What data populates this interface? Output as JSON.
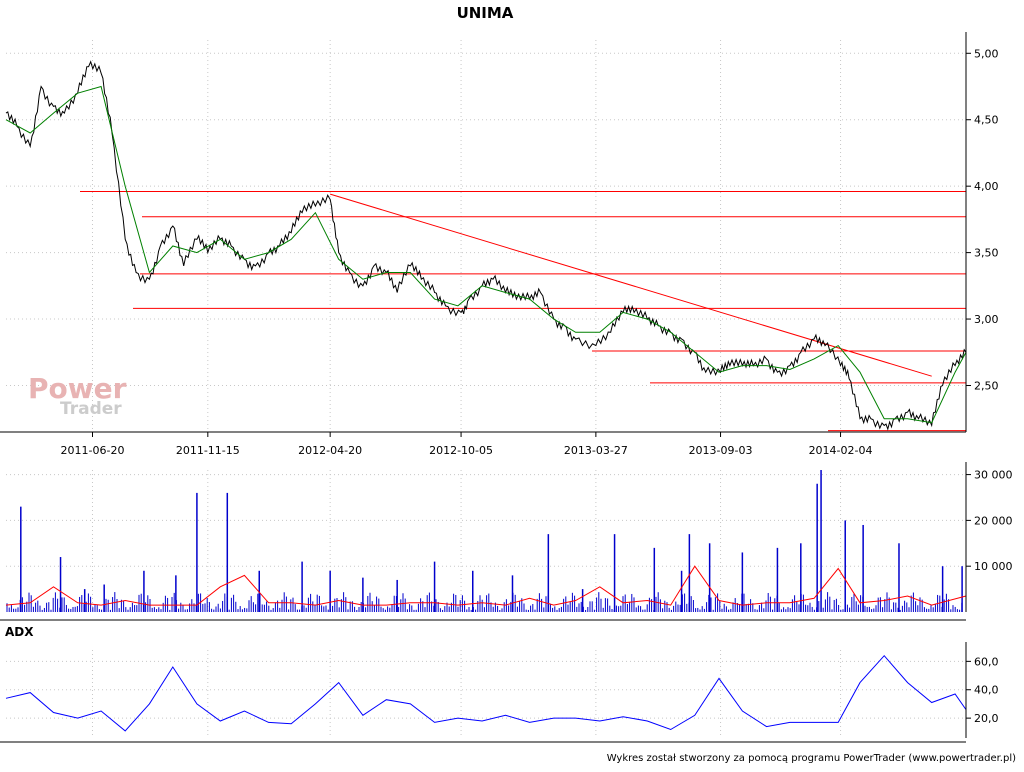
{
  "title": "UNIMA",
  "footer": "Wykres został stworzony za pomocą programu PowerTrader (www.powertrader.pl)",
  "watermark": {
    "line1": "Power",
    "line2": "Trader"
  },
  "colors": {
    "background": "#ffffff",
    "axis": "#000000",
    "grid": "#c8c8c8",
    "price_line": "#000000",
    "moving_average": "#008000",
    "trend_lines": "#ff0000",
    "volume_bars": "#0000cc",
    "volume_average": "#ff0000",
    "adx_line": "#0000ff",
    "watermark": "#e8b3b3"
  },
  "chart_data": [
    {
      "type": "line",
      "name": "price",
      "title": "UNIMA",
      "x_tick_labels": [
        "2011-06-20",
        "2011-11-15",
        "2012-04-20",
        "2012-10-05",
        "2013-03-27",
        "2013-09-03",
        "2014-02-04"
      ],
      "y_tick_labels": [
        "5,00",
        "4,50",
        "4,00",
        "3,50",
        "3,00",
        "2,50"
      ],
      "ylim": [
        2.15,
        5.1
      ],
      "grid": true,
      "x_range": [
        "2011-03-01",
        "2014-07-15"
      ],
      "series": [
        {
          "x": [
            "2011-03-01",
            "2011-03-15",
            "2011-04-01",
            "2011-04-15",
            "2011-05-01",
            "2011-05-15",
            "2011-06-01",
            "2011-06-15",
            "2011-07-01",
            "2011-07-15",
            "2011-08-01",
            "2011-08-15",
            "2011-09-01",
            "2011-09-15",
            "2011-10-01",
            "2011-10-15",
            "2011-11-01",
            "2011-11-15",
            "2011-12-01",
            "2011-12-15",
            "2012-01-01",
            "2012-01-15",
            "2012-02-01",
            "2012-02-15",
            "2012-03-01",
            "2012-03-15",
            "2012-04-01",
            "2012-04-20",
            "2012-05-01",
            "2012-05-15",
            "2012-06-01",
            "2012-06-15",
            "2012-07-01",
            "2012-07-15",
            "2012-08-01",
            "2012-08-15",
            "2012-09-01",
            "2012-09-15",
            "2012-10-05",
            "2012-10-15",
            "2012-11-01",
            "2012-11-15",
            "2012-12-01",
            "2012-12-15",
            "2013-01-01",
            "2013-01-15",
            "2013-02-01",
            "2013-02-15",
            "2013-03-01",
            "2013-03-27",
            "2013-04-15",
            "2013-05-01",
            "2013-05-15",
            "2013-06-01",
            "2013-06-15",
            "2013-07-01",
            "2013-07-15",
            "2013-08-01",
            "2013-08-15",
            "2013-09-03",
            "2013-09-15",
            "2013-10-01",
            "2013-10-15",
            "2013-11-01",
            "2013-11-15",
            "2013-12-01",
            "2013-12-15",
            "2014-01-01",
            "2014-01-15",
            "2014-02-04",
            "2014-02-15",
            "2014-03-01",
            "2014-03-15",
            "2014-04-01",
            "2014-04-15",
            "2014-05-01",
            "2014-05-15",
            "2014-06-01",
            "2014-06-15",
            "2014-07-01",
            "2014-07-15"
          ],
          "y": [
            4.55,
            4.45,
            4.3,
            4.75,
            4.6,
            4.55,
            4.7,
            4.9,
            4.85,
            4.4,
            3.6,
            3.35,
            3.3,
            3.55,
            3.7,
            3.4,
            3.6,
            3.5,
            3.6,
            3.55,
            3.45,
            3.4,
            3.5,
            3.55,
            3.65,
            3.8,
            3.85,
            3.9,
            3.5,
            3.35,
            3.25,
            3.4,
            3.35,
            3.2,
            3.4,
            3.3,
            3.2,
            3.1,
            3.05,
            3.15,
            3.25,
            3.3,
            3.2,
            3.15,
            3.15,
            3.2,
            3.0,
            2.95,
            2.85,
            2.8,
            2.9,
            3.05,
            3.05,
            3.0,
            2.95,
            2.9,
            2.85,
            2.75,
            2.6,
            2.6,
            2.65,
            2.65,
            2.65,
            2.7,
            2.6,
            2.65,
            2.75,
            2.85,
            2.8,
            2.65,
            2.55,
            2.25,
            2.25,
            2.2,
            2.25,
            2.3,
            2.25,
            2.2,
            2.5,
            2.65,
            2.75
          ]
        }
      ],
      "moving_average": {
        "name": "average",
        "x": [
          "2011-03-01",
          "2011-04-01",
          "2011-05-01",
          "2011-06-01",
          "2011-07-01",
          "2011-08-01",
          "2011-09-01",
          "2011-10-01",
          "2011-11-01",
          "2011-12-01",
          "2012-01-01",
          "2012-02-01",
          "2012-03-01",
          "2012-04-01",
          "2012-05-01",
          "2012-06-01",
          "2012-07-01",
          "2012-08-01",
          "2012-09-01",
          "2012-10-01",
          "2012-11-01",
          "2012-12-01",
          "2013-01-01",
          "2013-02-01",
          "2013-03-01",
          "2013-04-01",
          "2013-05-01",
          "2013-06-01",
          "2013-07-01",
          "2013-08-01",
          "2013-09-01",
          "2013-10-01",
          "2013-11-01",
          "2013-12-01",
          "2014-01-01",
          "2014-02-01",
          "2014-03-01",
          "2014-04-01",
          "2014-05-01",
          "2014-06-01",
          "2014-07-01",
          "2014-07-15"
        ],
        "y": [
          4.5,
          4.4,
          4.55,
          4.7,
          4.75,
          4.0,
          3.35,
          3.55,
          3.5,
          3.6,
          3.45,
          3.5,
          3.6,
          3.8,
          3.45,
          3.3,
          3.35,
          3.35,
          3.15,
          3.1,
          3.25,
          3.2,
          3.15,
          3.0,
          2.9,
          2.9,
          3.05,
          3.0,
          2.9,
          2.75,
          2.6,
          2.65,
          2.65,
          2.62,
          2.7,
          2.8,
          2.6,
          2.25,
          2.25,
          2.22,
          2.6,
          2.75
        ]
      },
      "horizontal_lines": [
        3.96,
        3.77,
        3.34,
        3.08,
        2.76,
        2.52,
        2.16
      ],
      "trend_lines": [
        {
          "x": [
            "2012-04-20",
            "2014-06-01"
          ],
          "y": [
            3.94,
            2.57
          ]
        }
      ]
    },
    {
      "type": "bar",
      "name": "volume",
      "y_tick_labels": [
        "30 000",
        "20 000",
        "10 000"
      ],
      "ylim": [
        0,
        31000
      ],
      "grid": true,
      "series": [
        {
          "name": "volume",
          "x": [
            "2011-03-20",
            "2011-05-10",
            "2011-06-10",
            "2011-07-05",
            "2011-08-25",
            "2011-10-05",
            "2011-11-01",
            "2011-12-10",
            "2012-01-20",
            "2012-03-15",
            "2012-04-20",
            "2012-06-01",
            "2012-07-15",
            "2012-09-01",
            "2012-10-20",
            "2012-12-10",
            "2013-01-25",
            "2013-03-10",
            "2013-04-20",
            "2013-06-10",
            "2013-07-15",
            "2013-07-25",
            "2013-08-20",
            "2013-10-01",
            "2013-11-15",
            "2013-12-15",
            "2014-01-05",
            "2014-01-10",
            "2014-02-10",
            "2014-03-05",
            "2014-04-20",
            "2014-06-15",
            "2014-07-10"
          ],
          "values": [
            23000,
            12000,
            5000,
            6000,
            9000,
            8000,
            26000,
            26000,
            9000,
            11000,
            9000,
            7500,
            7000,
            11000,
            9000,
            8000,
            17000,
            5000,
            17000,
            14000,
            9000,
            17000,
            15000,
            13000,
            14000,
            15000,
            28000,
            31000,
            20000,
            19000,
            15000,
            10000,
            10000
          ]
        },
        {
          "name": "volume average",
          "x": [
            "2011-03-01",
            "2011-04-01",
            "2011-05-01",
            "2011-06-01",
            "2011-07-01",
            "2011-08-01",
            "2011-09-01",
            "2011-10-01",
            "2011-11-01",
            "2011-12-01",
            "2012-01-01",
            "2012-02-01",
            "2012-03-01",
            "2012-04-01",
            "2012-05-01",
            "2012-06-01",
            "2012-07-01",
            "2012-08-01",
            "2012-09-01",
            "2012-10-01",
            "2012-11-01",
            "2012-12-01",
            "2013-01-01",
            "2013-02-01",
            "2013-03-01",
            "2013-04-01",
            "2013-05-01",
            "2013-06-01",
            "2013-07-01",
            "2013-08-01",
            "2013-09-01",
            "2013-10-01",
            "2013-11-01",
            "2013-12-01",
            "2014-01-01",
            "2014-02-01",
            "2014-03-01",
            "2014-04-01",
            "2014-05-01",
            "2014-06-01",
            "2014-07-15"
          ],
          "values": [
            1500,
            2000,
            5500,
            2000,
            1500,
            2500,
            1500,
            1500,
            1500,
            5500,
            8000,
            2000,
            2000,
            1500,
            2500,
            1500,
            1500,
            2000,
            2000,
            1500,
            2000,
            1500,
            3000,
            1500,
            2500,
            5500,
            2000,
            2500,
            1500,
            10000,
            2500,
            1500,
            2000,
            2000,
            3000,
            9500,
            2000,
            2500,
            3500,
            1500,
            3500
          ]
        }
      ]
    },
    {
      "type": "line",
      "name": "ADX",
      "title": "ADX",
      "y_tick_labels": [
        "60,0",
        "40,0",
        "20,0"
      ],
      "ylim": [
        6,
        68
      ],
      "grid": true,
      "series": [
        {
          "name": "ADX",
          "x": [
            "2011-03-01",
            "2011-04-01",
            "2011-05-01",
            "2011-06-01",
            "2011-07-01",
            "2011-08-01",
            "2011-09-01",
            "2011-10-01",
            "2011-11-01",
            "2011-12-01",
            "2012-01-01",
            "2012-02-01",
            "2012-03-01",
            "2012-04-01",
            "2012-05-01",
            "2012-06-01",
            "2012-07-01",
            "2012-08-01",
            "2012-09-01",
            "2012-10-01",
            "2012-11-01",
            "2012-12-01",
            "2013-01-01",
            "2013-02-01",
            "2013-03-01",
            "2013-04-01",
            "2013-05-01",
            "2013-06-01",
            "2013-07-01",
            "2013-08-01",
            "2013-09-01",
            "2013-10-01",
            "2013-11-01",
            "2013-12-01",
            "2014-01-01",
            "2014-02-01",
            "2014-03-01",
            "2014-04-01",
            "2014-05-01",
            "2014-06-01",
            "2014-07-01",
            "2014-07-15"
          ],
          "y": [
            34,
            38,
            24,
            20,
            25,
            11,
            30,
            56,
            30,
            18,
            25,
            17,
            16,
            30,
            45,
            22,
            33,
            30,
            17,
            20,
            18,
            22,
            17,
            20,
            20,
            18,
            21,
            18,
            12,
            22,
            48,
            25,
            14,
            17,
            17,
            17,
            45,
            64,
            45,
            31,
            37,
            26
          ]
        }
      ]
    }
  ]
}
